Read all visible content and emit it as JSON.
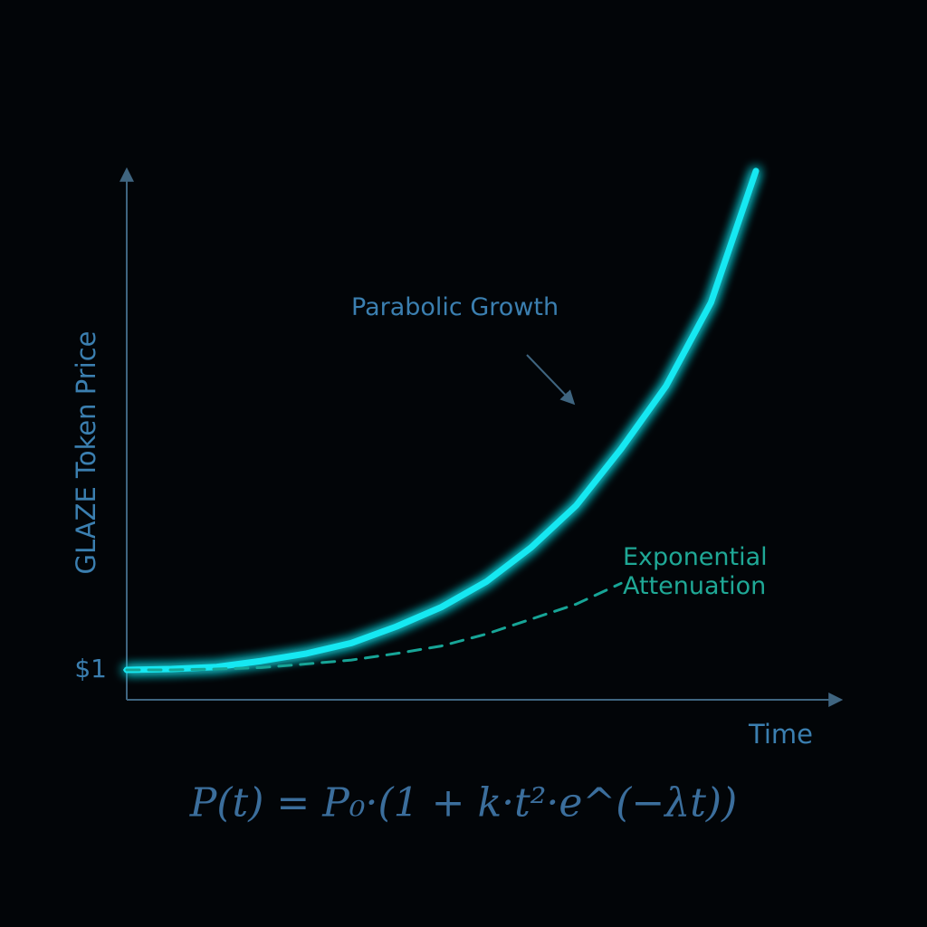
{
  "chart_data": {
    "type": "line",
    "y_label": "GLAZE Token Price",
    "x_label": "Time",
    "formula": "P(t) = P₀·(1 + k·t²·e^(−λt))",
    "categories": [
      null,
      null,
      null,
      null,
      null,
      null,
      null,
      null,
      null,
      null,
      null,
      null,
      null,
      null,
      null
    ],
    "series": [
      {
        "name": "Parabolic Growth",
        "color": "#19e8f2",
        "values": [
          1.0,
          1.03,
          1.1,
          1.3,
          1.55,
          1.9,
          2.45,
          3.1,
          3.95,
          5.1,
          6.5,
          8.4,
          10.5,
          13.3,
          17.7
        ]
      },
      {
        "name": "Exponential Attenuation",
        "color": "#17a597",
        "values": [
          1.0,
          1.0,
          1.03,
          1.08,
          1.2,
          1.33,
          1.55,
          1.8,
          2.2,
          2.7,
          3.2,
          3.9,
          null,
          null,
          null
        ]
      }
    ],
    "ylim": [
      0,
      17.8
    ],
    "yticks": [
      {
        "value": 1,
        "label": "$1"
      }
    ]
  }
}
